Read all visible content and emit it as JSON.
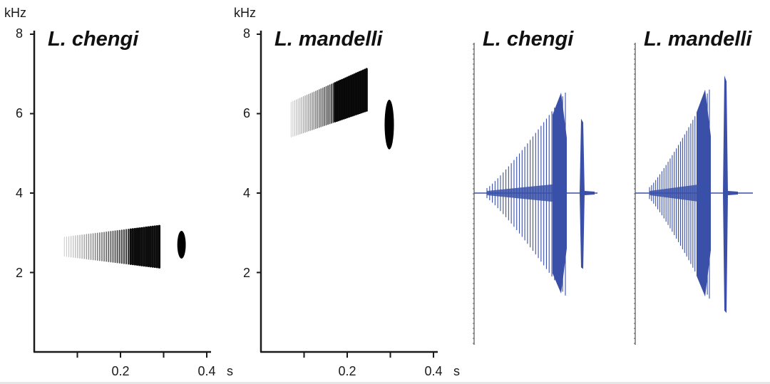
{
  "colors": {
    "spectrogram": "#000000",
    "waveform": "#3a50a8",
    "axis": "#1a1a1a"
  },
  "chart_data": [
    {
      "type": "spectrogram",
      "title": "L. chengi",
      "ylabel": "kHz",
      "xlabel": "s",
      "xlim": [
        0,
        0.42
      ],
      "ylim": [
        0,
        8.4
      ],
      "y_ticks": [
        2,
        4,
        6,
        8
      ],
      "x_ticks_labeled": [
        0.2,
        0.4
      ],
      "x_ticks_minor": [
        0.1,
        0.3
      ],
      "y_tick_labels": [
        "2",
        "4",
        "6",
        "8"
      ],
      "x_tick_labels": [
        "0.2",
        "0.4"
      ],
      "pulse_train": {
        "t_start": 0.07,
        "t_end": 0.29,
        "f_center": 2.65,
        "bandwidth_start": 0.5,
        "bandwidth_end": 1.1,
        "dense_from": 0.22
      },
      "note": {
        "t_start": 0.335,
        "t_end": 0.348,
        "f_low": 2.35,
        "f_high": 3.05
      }
    },
    {
      "type": "spectrogram",
      "title": "L. mandelli",
      "ylabel": "kHz",
      "xlabel": "s",
      "xlim": [
        0,
        0.42
      ],
      "ylim": [
        0,
        8.4
      ],
      "y_ticks": [
        2,
        4,
        6,
        8
      ],
      "x_ticks_labeled": [
        0.2,
        0.4
      ],
      "x_ticks_minor": [
        0.1,
        0.3
      ],
      "y_tick_labels": [
        "2",
        "4",
        "6",
        "8"
      ],
      "x_tick_labels": [
        "0.2",
        "0.4"
      ],
      "pulse_train": {
        "t_start": 0.07,
        "t_end": 0.245,
        "f_center_start": 5.85,
        "f_center_end": 6.6,
        "bandwidth_start": 0.9,
        "bandwidth_end": 1.1,
        "dense_from": 0.17
      },
      "note": {
        "t_start": 0.29,
        "t_end": 0.305,
        "f_low": 5.1,
        "f_high": 6.35
      }
    },
    {
      "type": "waveform",
      "title": "L. chengi",
      "pulse_count": 30,
      "train_relative_amplitude_start": 0.05,
      "train_relative_amplitude_end": 1.0,
      "note_relative_amplitude": 0.74
    },
    {
      "type": "waveform",
      "title": "L. mandelli",
      "pulse_count": 30,
      "train_relative_amplitude_start": 0.05,
      "train_relative_amplitude_end": 0.88,
      "note_relative_amplitude": 1.0
    }
  ]
}
